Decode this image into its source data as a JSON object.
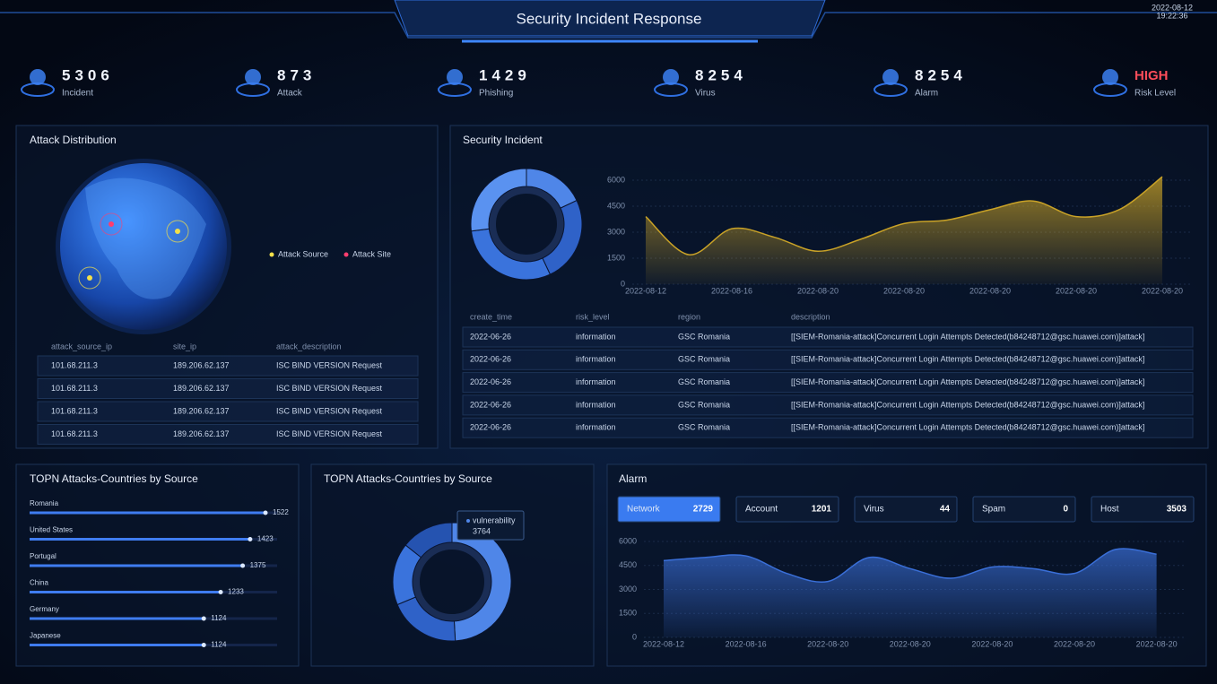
{
  "header": {
    "title": "Security Incident Response",
    "date": "2022-08-12",
    "time": "19:22:36"
  },
  "stats": [
    {
      "value": 5306,
      "label": "Incident"
    },
    {
      "value": 873,
      "label": "Attack"
    },
    {
      "value": 1429,
      "label": "Phishing"
    },
    {
      "value": 8254,
      "label": "Virus"
    },
    {
      "value": 8254,
      "label": "Alarm"
    },
    {
      "value": "HIGH",
      "label": "Risk Level",
      "color": "#ff4d5a"
    }
  ],
  "attack_distribution": {
    "title": "Attack Distribution",
    "legend": [
      {
        "name": "Attack Source",
        "color": "#f2e04a"
      },
      {
        "name": "Attack Site",
        "color": "#ff3d6e"
      }
    ],
    "table": {
      "columns": [
        "attack_source_ip",
        "site_ip",
        "attack_description"
      ],
      "rows": [
        [
          "101.68.211.3",
          "189.206.62.137",
          "ISC BIND VERSION Request"
        ],
        [
          "101.68.211.3",
          "189.206.62.137",
          "ISC BIND VERSION Request"
        ],
        [
          "101.68.211.3",
          "189.206.62.137",
          "ISC BIND VERSION Request"
        ],
        [
          "101.68.211.3",
          "189.206.62.137",
          "ISC BIND VERSION Request"
        ]
      ]
    }
  },
  "security_incident": {
    "title": "Security Incident",
    "donut": {
      "type": "pie",
      "values": [
        18,
        25,
        30,
        27
      ],
      "colors": [
        "#4f86e8",
        "#2f62c8",
        "#3a73dc",
        "#5a92f0"
      ]
    },
    "chart": {
      "type": "area",
      "categories": [
        "2022-08-12",
        null,
        "2022-08-16",
        null,
        "2022-08-20",
        null,
        "2022-08-20",
        null,
        "2022-08-20",
        null,
        "2022-08-20",
        null,
        "2022-08-20"
      ],
      "values": [
        3900,
        1700,
        3200,
        2700,
        1900,
        2600,
        3500,
        3700,
        4300,
        4800,
        3900,
        4300,
        6200
      ],
      "ylim": [
        0,
        6500
      ],
      "yticks": [
        0,
        1500,
        3000,
        4500,
        6000
      ],
      "color": "#c9a227"
    },
    "table": {
      "columns": [
        "create_time",
        "risk_level",
        "region",
        "description"
      ],
      "rows": [
        [
          "2022-06-26",
          "information",
          "GSC Romania",
          "[[SIEM-Romania-attack]Concurrent Login Attempts Detected(b84248712@gsc.huawei.com)]attack]"
        ],
        [
          "2022-06-26",
          "information",
          "GSC Romania",
          "[[SIEM-Romania-attack]Concurrent Login Attempts Detected(b84248712@gsc.huawei.com)]attack]"
        ],
        [
          "2022-06-26",
          "information",
          "GSC Romania",
          "[[SIEM-Romania-attack]Concurrent Login Attempts Detected(b84248712@gsc.huawei.com)]attack]"
        ],
        [
          "2022-06-26",
          "information",
          "GSC Romania",
          "[[SIEM-Romania-attack]Concurrent Login Attempts Detected(b84248712@gsc.huawei.com)]attack]"
        ],
        [
          "2022-06-26",
          "information",
          "GSC Romania",
          "[[SIEM-Romania-attack]Concurrent Login Attempts Detected(b84248712@gsc.huawei.com)]attack]"
        ]
      ]
    }
  },
  "top_countries": {
    "title": "TOPN Attacks-Countries by Source",
    "type": "bar",
    "categories": [
      "Romania",
      "United States",
      "Portugal",
      "China",
      "Germany",
      "Japanese"
    ],
    "values": [
      1522,
      1423,
      1375,
      1233,
      1124,
      1124
    ],
    "color": "#3f7cf0"
  },
  "vulnerability": {
    "title": "TOPN Attacks-Countries by Source",
    "type": "pie",
    "names": [
      "vulnerability",
      null,
      null,
      null
    ],
    "values": [
      3764,
      1500,
      1300,
      1100
    ],
    "colors": [
      "#4f86e8",
      "#2f62c8",
      "#3a73dc",
      "#2553b0"
    ]
  },
  "alarm": {
    "title": "Alarm",
    "tabs": [
      {
        "label": "Network",
        "value": 2729,
        "selected": true
      },
      {
        "label": "Account",
        "value": 1201
      },
      {
        "label": "Virus",
        "value": 44
      },
      {
        "label": "Spam",
        "value": 0
      },
      {
        "label": "Host",
        "value": 3503
      }
    ],
    "chart": {
      "type": "area",
      "categories": [
        "2022-08-12",
        null,
        "2022-08-16",
        null,
        "2022-08-20",
        null,
        "2022-08-20",
        null,
        "2022-08-20",
        null,
        "2022-08-20",
        null,
        "2022-08-20"
      ],
      "values": [
        4800,
        5000,
        5100,
        4000,
        3500,
        5000,
        4300,
        3700,
        4400,
        4300,
        4000,
        5500,
        5200
      ],
      "ylim": [
        0,
        6000
      ],
      "yticks": [
        0,
        1500,
        3000,
        4500,
        6000
      ],
      "color": "#3a6fd8"
    }
  }
}
